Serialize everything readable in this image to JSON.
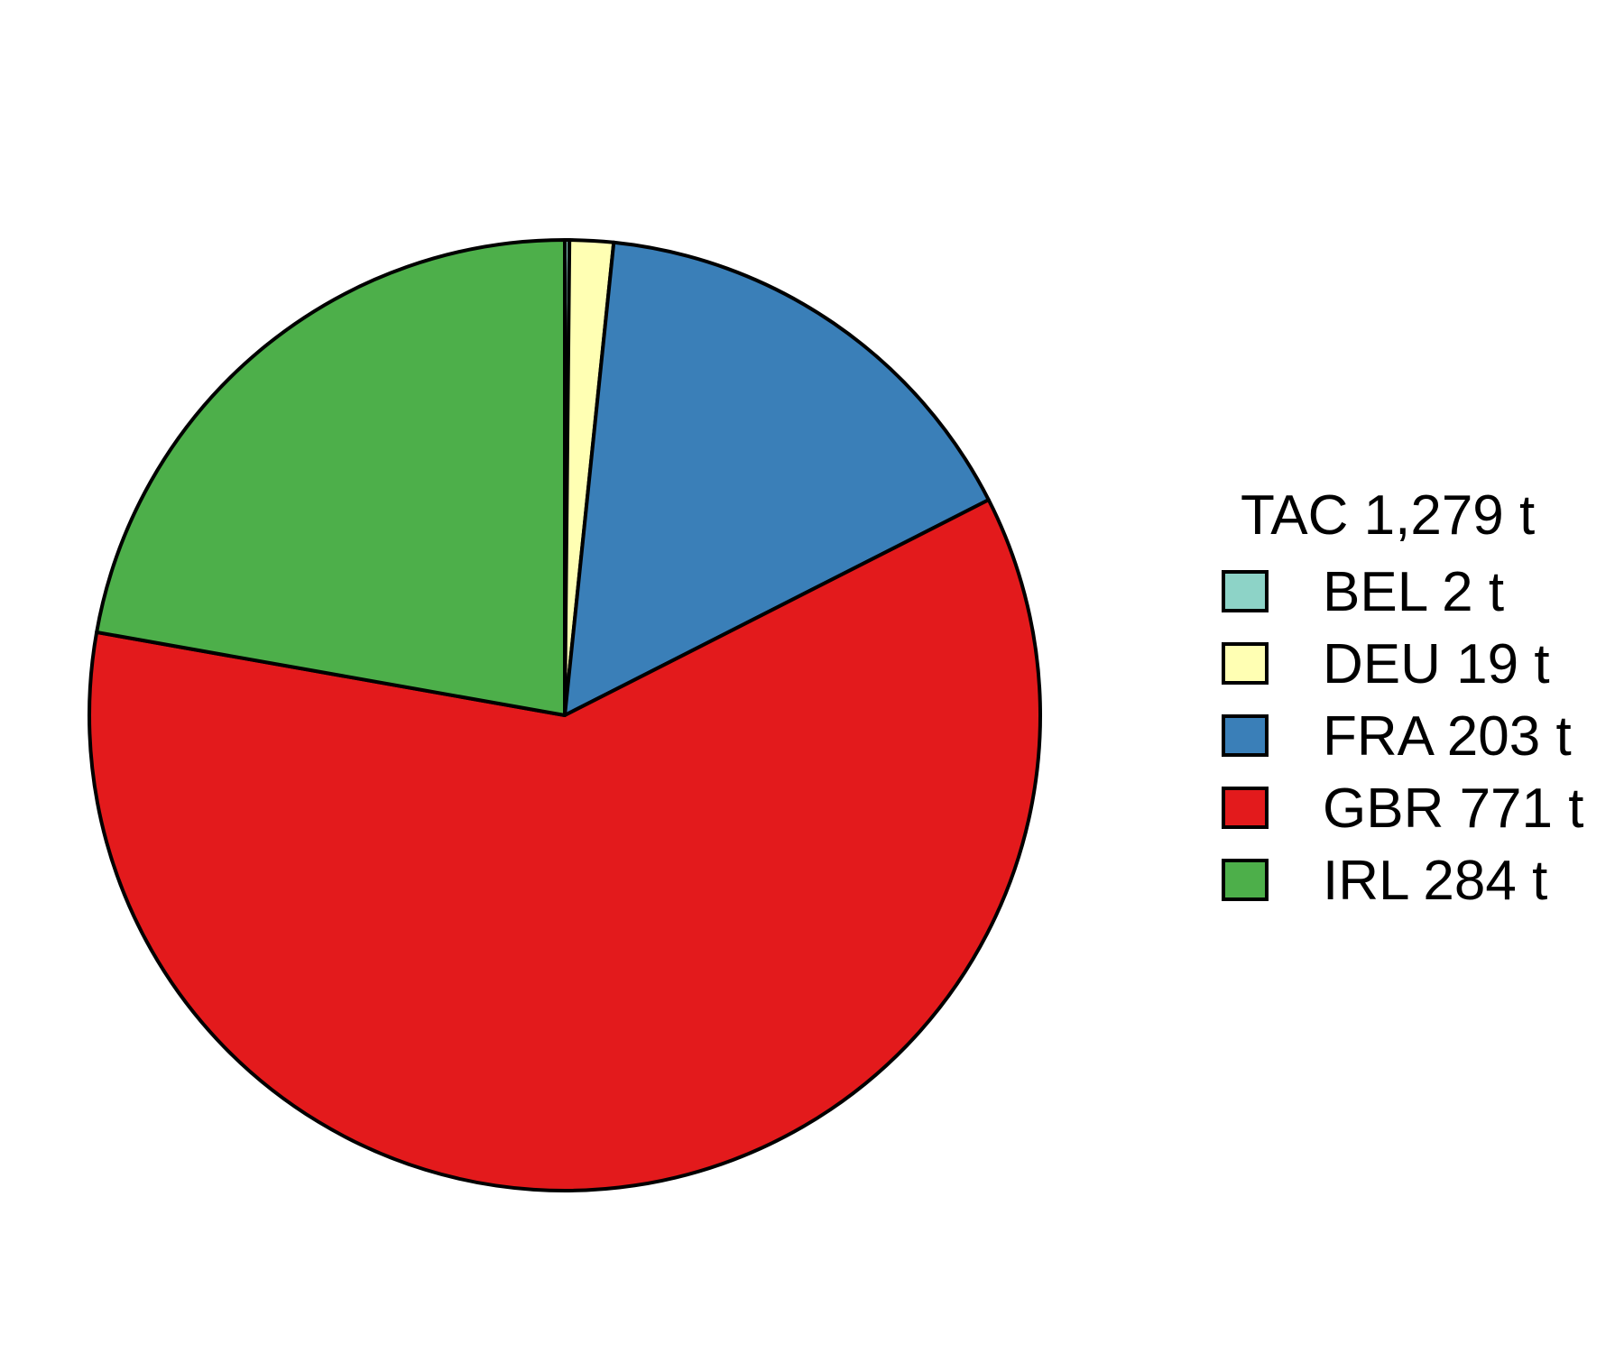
{
  "chart_data": {
    "type": "pie",
    "title": "TAC 1,279 t",
    "start": "12 o'clock",
    "direction": "clockwise",
    "legend_position": "right",
    "slices": [
      {
        "key": "BEL",
        "label": "BEL 2 t",
        "value": 2,
        "color": "#8DD3C7"
      },
      {
        "key": "DEU",
        "label": "DEU 19 t",
        "value": 19,
        "color": "#FFFFB3"
      },
      {
        "key": "FRA",
        "label": "FRA 203 t",
        "value": 203,
        "color": "#3A7FB8"
      },
      {
        "key": "GBR",
        "label": "GBR 771 t",
        "value": 771,
        "color": "#E31A1C"
      },
      {
        "key": "IRL",
        "label": "IRL 284 t",
        "value": 284,
        "color": "#4DAF4A"
      }
    ]
  }
}
